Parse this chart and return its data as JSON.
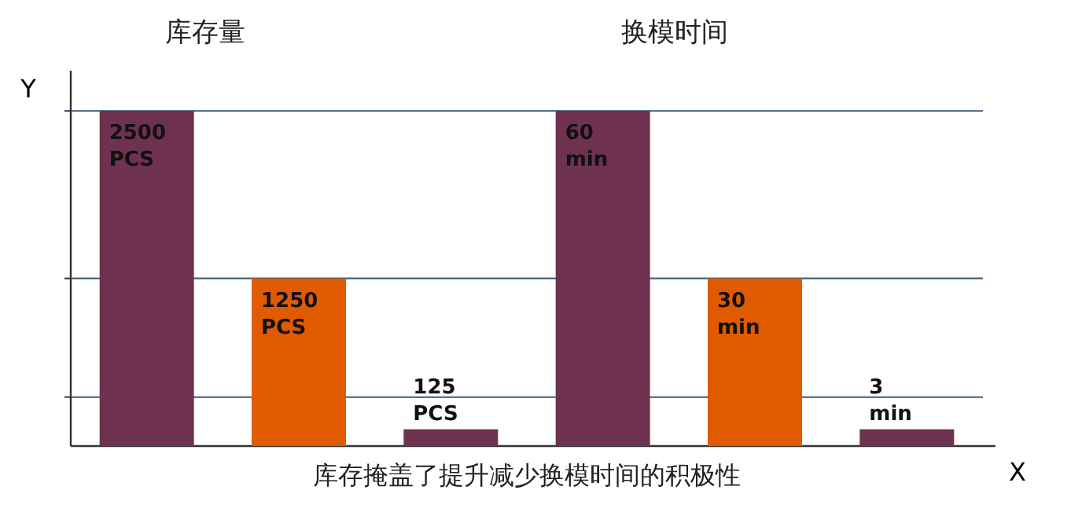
{
  "chart_data": [
    {
      "type": "bar",
      "title": "库存量",
      "ylabel": "Y",
      "categories": [
        null,
        null,
        null
      ],
      "values": [
        2500,
        1250,
        125
      ],
      "colors": [
        "#6e3250",
        "#e05a00",
        "#6e3250"
      ],
      "value_labels": [
        "2500\nPCS",
        "1250\nPCS",
        "125\nPCS"
      ],
      "ylim": [
        0,
        2800
      ],
      "yticks": [
        {
          "value": 365,
          "label": null
        },
        {
          "value": 1250,
          "label": null
        },
        {
          "value": 2500,
          "label": null
        }
      ],
      "grid": "y",
      "annotations": [
        "库存掩盖了提升减少换模时间的积极性"
      ]
    },
    {
      "type": "bar",
      "title": "换模时间",
      "xlabel": "X",
      "categories": [
        null,
        null,
        null
      ],
      "values": [
        60,
        30,
        3
      ],
      "colors": [
        "#6e3250",
        "#e05a00",
        "#6e3250"
      ],
      "value_labels": [
        "60\nmin",
        "30\nmin",
        "3\nmin"
      ]
    }
  ]
}
